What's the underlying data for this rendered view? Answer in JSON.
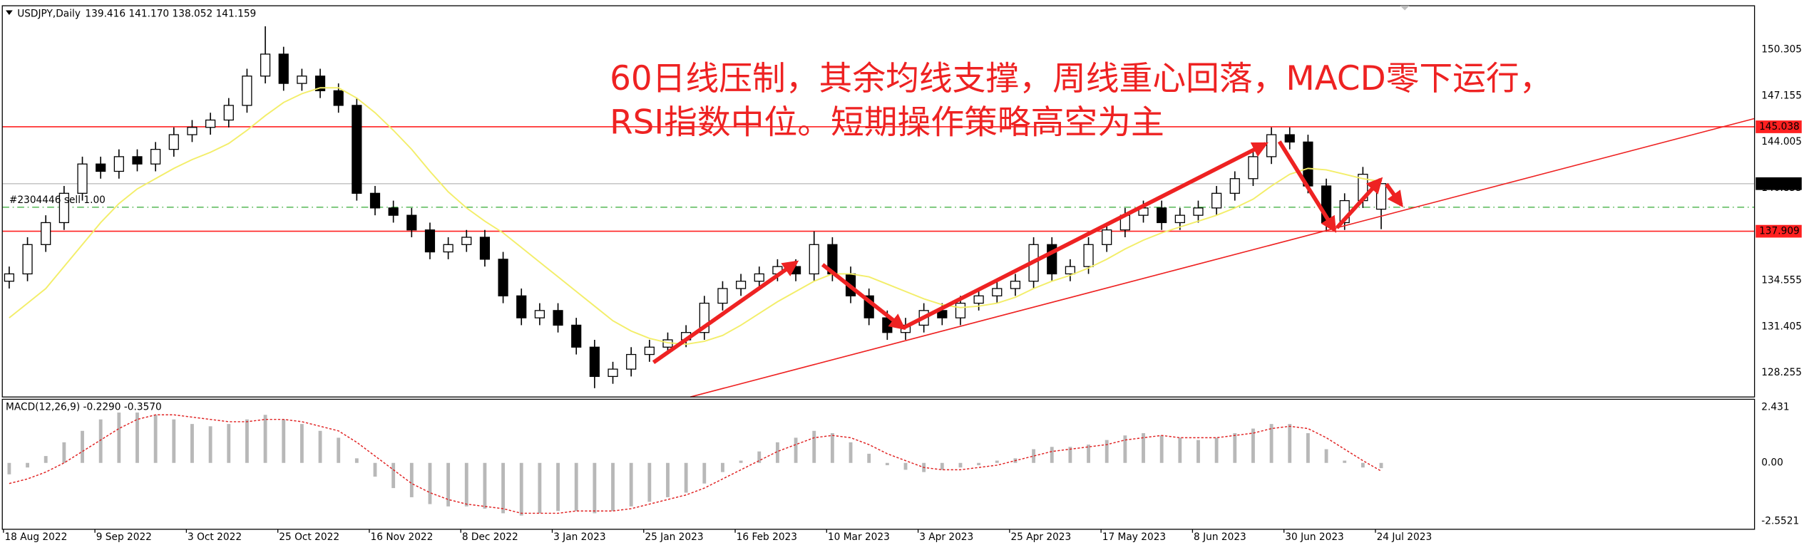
{
  "chart_data": {
    "type": "candlestick",
    "title": "USDJPY,Daily",
    "ohlc_label": "139.416 141.170 138.052 141.159",
    "categories": [
      "18 Aug 2022",
      null,
      null,
      null,
      null,
      "9 Sep 2022",
      null,
      null,
      null,
      null,
      "3 Oct 2022",
      null,
      null,
      null,
      null,
      "25 Oct 2022",
      null,
      null,
      null,
      null,
      "16 Nov 2022",
      null,
      null,
      null,
      null,
      "8 Dec 2022",
      null,
      null,
      null,
      null,
      "3 Jan 2023",
      null,
      null,
      null,
      null,
      "25 Jan 2023",
      null,
      null,
      null,
      null,
      "16 Feb 2023",
      null,
      null,
      null,
      null,
      "10 Mar 2023",
      null,
      null,
      null,
      null,
      "3 Apr 2023",
      null,
      null,
      null,
      null,
      "25 Apr 2023",
      null,
      null,
      null,
      null,
      "17 May 2023",
      null,
      null,
      null,
      null,
      "8 Jun 2023",
      null,
      null,
      null,
      null,
      "30 Jun 2023",
      null,
      null,
      null,
      null,
      "24 Jul 2023"
    ],
    "open": [
      134.5,
      135,
      137,
      138.5,
      140.5,
      142.5,
      142,
      143,
      142.5,
      143.5,
      144.5,
      145,
      145.5,
      146.5,
      148.5,
      150,
      148,
      148.5,
      147.5,
      146.5,
      140.5,
      139.5,
      139,
      138,
      136.5,
      137,
      137.5,
      136,
      133.5,
      132,
      132.5,
      131.5,
      130,
      128,
      128.5,
      129.5,
      130,
      130.5,
      131,
      133,
      134,
      134.5,
      135,
      135.5,
      135,
      137,
      135,
      133.5,
      132,
      131,
      131.5,
      132.5,
      132,
      133,
      133.5,
      134,
      134.5,
      137,
      135,
      135.5,
      137,
      138,
      139,
      139.5,
      138.5,
      139,
      139.5,
      140.5,
      141.5,
      143,
      144.5,
      144,
      141,
      138.5,
      140,
      139.416
    ],
    "high": [
      135.5,
      137.5,
      139,
      141,
      143,
      143,
      143.5,
      143.5,
      144,
      145,
      145.5,
      146,
      147,
      149,
      151.9,
      150.5,
      149,
      149,
      148,
      147,
      141,
      140,
      139.5,
      138.5,
      137.5,
      138,
      138,
      136.5,
      134,
      133,
      133,
      132,
      130.5,
      129,
      130,
      130.5,
      131,
      131.5,
      133.5,
      134.5,
      135,
      135.5,
      136,
      136,
      137.9,
      137.5,
      135.5,
      134,
      132.5,
      132,
      133,
      133,
      133.5,
      134,
      134.5,
      135,
      137.5,
      137.5,
      136,
      137.5,
      138.5,
      139.5,
      140,
      140,
      139.5,
      140,
      141,
      142,
      143.5,
      145,
      145,
      144.5,
      141.5,
      140.5,
      142.3,
      141.17
    ],
    "low": [
      134,
      134.5,
      136.5,
      138,
      140,
      141.5,
      141.5,
      142,
      142,
      143,
      144,
      144.5,
      145,
      146,
      148,
      147.5,
      147.5,
      147,
      146,
      140,
      139,
      138.5,
      137.5,
      136,
      136,
      136.5,
      135.5,
      133,
      131.5,
      131.5,
      131,
      129.5,
      127.2,
      127.5,
      128,
      129,
      129.5,
      130,
      130.5,
      132.5,
      133.5,
      134,
      134.5,
      134.5,
      134.5,
      134.5,
      133,
      131.5,
      130.5,
      130.5,
      131,
      131.5,
      131.5,
      132.5,
      133,
      133.5,
      134,
      134.5,
      134.5,
      135,
      136.5,
      137.5,
      138.5,
      138,
      138,
      138.5,
      139,
      140,
      141,
      142.5,
      143.5,
      140.5,
      137.9,
      138,
      139.5,
      138.052
    ],
    "close": [
      135,
      137,
      138.5,
      140.5,
      142.5,
      142,
      143,
      142.5,
      143.5,
      144.5,
      145,
      145.5,
      146.5,
      148.5,
      150,
      148,
      148.5,
      147.5,
      146.5,
      140.5,
      139.5,
      139,
      138,
      136.5,
      137,
      137.5,
      136,
      133.5,
      132,
      132.5,
      131.5,
      130,
      128,
      128.5,
      129.5,
      130,
      130.5,
      131,
      133,
      134,
      134.5,
      135,
      135.5,
      135,
      137,
      135,
      133.5,
      132,
      131,
      131.5,
      132.5,
      132,
      133,
      133.5,
      134,
      134.5,
      137,
      135,
      135.5,
      137,
      138,
      139,
      139.5,
      138.5,
      139,
      139.5,
      140.5,
      141.5,
      143,
      144.5,
      144,
      141,
      138.5,
      140,
      141.8,
      141.159
    ],
    "up_color": "#ffffff",
    "down_color": "#000000",
    "moving_average": {
      "color": "#f3ee6a",
      "values": [
        132,
        133,
        134,
        135.5,
        137,
        138.5,
        139.8,
        140.8,
        141.5,
        142.2,
        142.8,
        143.3,
        143.9,
        144.8,
        145.8,
        146.7,
        147.3,
        147.7,
        147.7,
        147,
        146,
        144.8,
        143.5,
        142,
        140.6,
        139.5,
        138.6,
        137.8,
        136.8,
        135.8,
        134.8,
        133.8,
        132.8,
        131.8,
        131.1,
        130.6,
        130.3,
        130.2,
        130.4,
        130.8,
        131.5,
        132.3,
        133.1,
        133.8,
        134.5,
        135,
        135,
        134.8,
        134.3,
        133.8,
        133.3,
        132.9,
        132.7,
        132.8,
        133,
        133.4,
        134,
        134.5,
        134.9,
        135.4,
        136,
        136.7,
        137.3,
        137.8,
        138.2,
        138.6,
        139,
        139.5,
        140.1,
        141,
        141.8,
        142.2,
        142.1,
        141.8,
        141.5,
        141.3
      ]
    },
    "ylim": [
      126.6,
      153.3
    ],
    "yticks": [
      150.305,
      147.155,
      144.005,
      140.855,
      137.705,
      134.555,
      131.405,
      128.255
    ],
    "levels": [
      {
        "value": 145.038,
        "color": "#ff2020",
        "label_fill": "#ff2020",
        "label_color": "#ffffff"
      },
      {
        "value": 141.159,
        "color": "#c8c8c8",
        "label_fill": "#000000",
        "label_color": "#ffffff"
      },
      {
        "value": 137.909,
        "color": "#ff2020",
        "label_fill": "#ff2020",
        "label_color": "#ffffff"
      }
    ],
    "order_line": {
      "value": 139.55,
      "color": "#33aa33",
      "label": "#2304446 sell 1.00"
    },
    "annotation": [
      "60日线压制，其余均线支撑，周线重心回落，MACD零下运行，",
      "RSI指数中位。短期操作策略高空为主"
    ],
    "macd": {
      "label": "MACD(12,26,9) -0.2290 -0.3570",
      "histogram": {
        "color": "#b8b8b8",
        "values": [
          -0.5,
          -0.2,
          0.3,
          0.9,
          1.4,
          1.9,
          2.2,
          2.2,
          2.1,
          1.9,
          1.7,
          1.6,
          1.7,
          1.9,
          2.1,
          1.9,
          1.7,
          1.4,
          1.1,
          0.2,
          -0.6,
          -1.1,
          -1.5,
          -1.8,
          -1.9,
          -1.9,
          -2.0,
          -2.2,
          -2.3,
          -2.2,
          -2.1,
          -2.1,
          -2.2,
          -2.1,
          -1.9,
          -1.7,
          -1.5,
          -1.3,
          -0.9,
          -0.4,
          0.1,
          0.5,
          0.9,
          1.1,
          1.4,
          1.3,
          0.9,
          0.4,
          -0.1,
          -0.3,
          -0.4,
          -0.3,
          -0.2,
          -0.1,
          0.1,
          0.2,
          0.6,
          0.7,
          0.7,
          0.8,
          1.0,
          1.2,
          1.3,
          1.2,
          1.1,
          1.0,
          1.1,
          1.3,
          1.5,
          1.7,
          1.7,
          1.3,
          0.6,
          0.1,
          -0.2,
          -0.229
        ]
      },
      "signal": {
        "color": "#e02020",
        "values": [
          -0.9,
          -0.7,
          -0.4,
          0,
          0.5,
          1.0,
          1.5,
          1.9,
          2.1,
          2.1,
          2.0,
          1.9,
          1.8,
          1.8,
          1.9,
          1.9,
          1.8,
          1.6,
          1.4,
          0.9,
          0.3,
          -0.3,
          -0.9,
          -1.3,
          -1.6,
          -1.8,
          -1.9,
          -2.0,
          -2.2,
          -2.2,
          -2.2,
          -2.1,
          -2.1,
          -2.1,
          -2.0,
          -1.8,
          -1.6,
          -1.4,
          -1.1,
          -0.7,
          -0.3,
          0.1,
          0.5,
          0.8,
          1.1,
          1.2,
          1.1,
          0.8,
          0.4,
          0.1,
          -0.2,
          -0.3,
          -0.3,
          -0.2,
          -0.1,
          0.1,
          0.3,
          0.5,
          0.6,
          0.7,
          0.8,
          1.0,
          1.1,
          1.2,
          1.1,
          1.1,
          1.1,
          1.2,
          1.3,
          1.5,
          1.6,
          1.5,
          1.1,
          0.6,
          0.1,
          -0.357
        ]
      },
      "ylim": [
        -2.9,
        2.78
      ],
      "yticks": [
        2.431,
        {
          "value": 0,
          "label": "0.00"
        },
        -2.5521
      ]
    }
  }
}
